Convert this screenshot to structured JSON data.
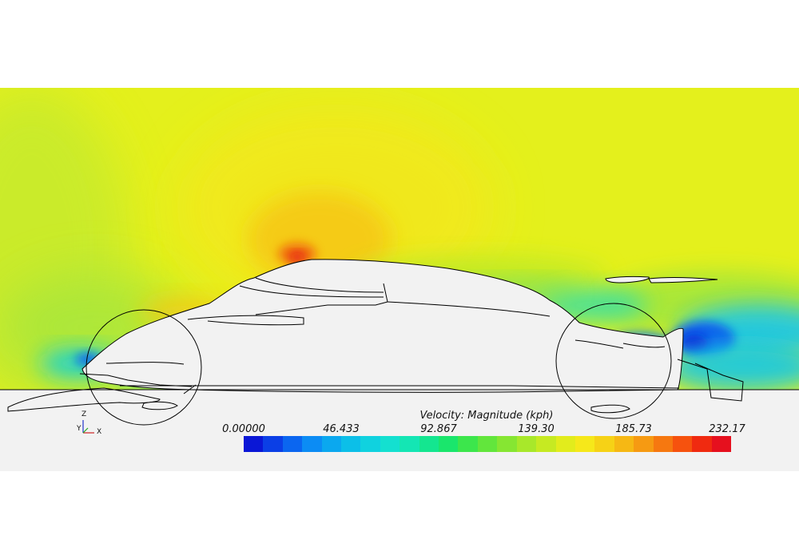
{
  "legend": {
    "title": "Velocity: Magnitude (kph)",
    "ticks": [
      "0.00000",
      "46.433",
      "92.867",
      "139.30",
      "185.73",
      "232.17"
    ],
    "colormap": [
      "#0a17d6",
      "#0b3fe6",
      "#0b66f0",
      "#0c8cf4",
      "#0ba8ef",
      "#0cbfe8",
      "#10d2df",
      "#14e0d0",
      "#14e6b4",
      "#14e690",
      "#1ae66c",
      "#3ce64c",
      "#62e63c",
      "#86e632",
      "#a8e82a",
      "#c6ea22",
      "#e2ec1c",
      "#f6e81a",
      "#f6d216",
      "#f6b814",
      "#f69a12",
      "#f67810",
      "#f6520e",
      "#f02a10",
      "#e6101e"
    ]
  },
  "axes_triad": {
    "z": "Z",
    "y": "Y",
    "x": "X"
  }
}
